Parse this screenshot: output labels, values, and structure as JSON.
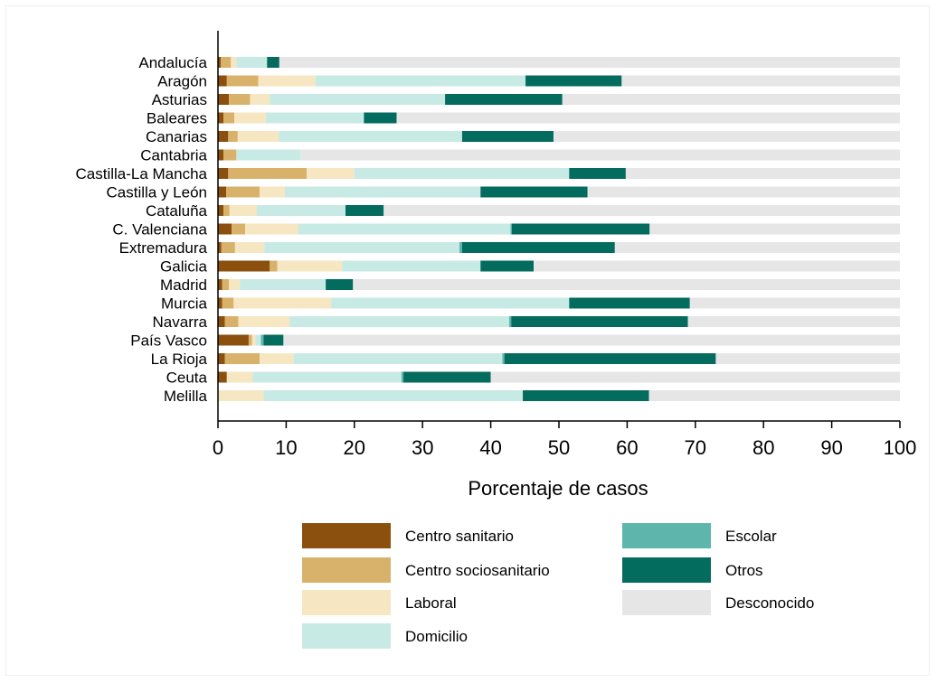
{
  "chart_data": {
    "type": "bar",
    "orientation": "horizontal",
    "stacked": true,
    "xlabel": "Porcentaje de casos",
    "xlim": [
      0,
      100
    ],
    "xticks": [
      "0",
      "10",
      "20",
      "30",
      "40",
      "50",
      "60",
      "70",
      "80",
      "90",
      "100"
    ],
    "categories": [
      "Andalucía",
      "Aragón",
      "Asturias",
      "Baleares",
      "Canarias",
      "Cantabria",
      "Castilla-La Mancha",
      "Castilla y León",
      "Cataluña",
      "C. Valenciana",
      "Extremadura",
      "Galicia",
      "Madrid",
      "Murcia",
      "Navarra",
      "País Vasco",
      "La Rioja",
      "Ceuta",
      "Melilla"
    ],
    "series": [
      {
        "name": "Centro sanitario",
        "color": "#8B4F0E",
        "values": [
          0.4,
          1.3,
          1.6,
          0.8,
          1.5,
          0.8,
          1.5,
          1.2,
          0.8,
          2.0,
          0.5,
          7.6,
          0.6,
          0.6,
          1.0,
          4.5,
          1.0,
          1.3,
          0.0
        ]
      },
      {
        "name": "Centro sociosanitario",
        "color": "#D8B26A",
        "values": [
          1.5,
          4.6,
          3.1,
          1.6,
          1.4,
          1.9,
          11.5,
          4.9,
          0.9,
          2.0,
          2.0,
          1.1,
          1.0,
          1.7,
          2.0,
          0.5,
          5.1,
          0.0,
          0.0
        ]
      },
      {
        "name": "Laboral",
        "color": "#F6E6C2",
        "values": [
          0.8,
          8.4,
          2.9,
          4.6,
          6.0,
          0.0,
          7.0,
          3.7,
          4.0,
          7.8,
          4.3,
          9.5,
          1.6,
          14.3,
          7.5,
          0.5,
          5.0,
          3.8,
          6.7
        ]
      },
      {
        "name": "Domicilio",
        "color": "#C8EAE4",
        "values": [
          4.5,
          30.8,
          25.7,
          14.4,
          26.9,
          9.4,
          31.5,
          28.7,
          13.0,
          31.1,
          28.6,
          20.3,
          12.6,
          34.9,
          32.2,
          0.8,
          30.6,
          21.8,
          38.0
        ]
      },
      {
        "name": "Escolar",
        "color": "#5DB5AC",
        "values": [
          0.0,
          0.0,
          0.0,
          0.0,
          0.0,
          0.0,
          0.0,
          0.0,
          0.0,
          0.2,
          0.4,
          0.0,
          0.0,
          0.0,
          0.3,
          0.4,
          0.3,
          0.3,
          0.0
        ]
      },
      {
        "name": "Otros",
        "color": "#046B5F",
        "values": [
          1.8,
          14.1,
          17.2,
          4.8,
          13.4,
          0.0,
          8.3,
          15.7,
          5.6,
          20.2,
          22.4,
          7.8,
          4.0,
          17.7,
          25.9,
          2.9,
          31.0,
          12.8,
          18.5
        ]
      },
      {
        "name": "Desconocido",
        "color": "#E6E6E6",
        "values": [
          91.0,
          40.8,
          49.5,
          73.8,
          50.8,
          87.9,
          40.2,
          45.8,
          75.7,
          36.7,
          41.8,
          53.7,
          80.2,
          30.8,
          31.1,
          90.4,
          27.0,
          60.0,
          36.8
        ]
      }
    ],
    "legend": {
      "placement": "bottom",
      "columns": 2
    },
    "grid": false
  }
}
